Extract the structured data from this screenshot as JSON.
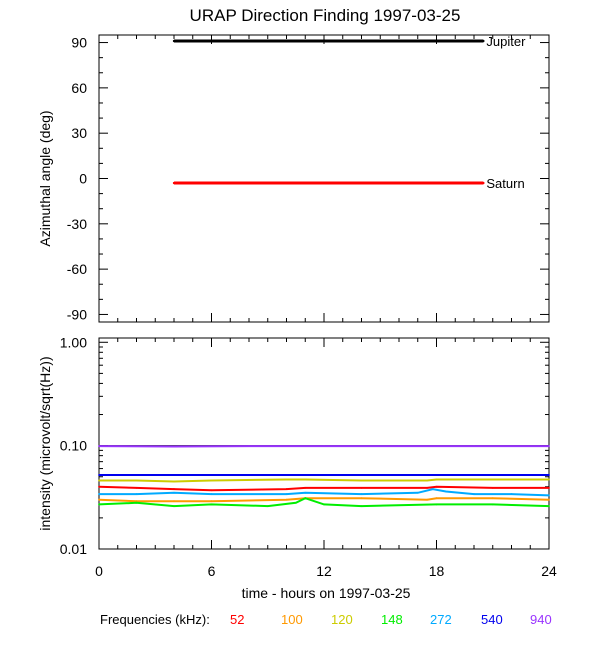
{
  "title": "URAP Direction Finding  1997-03-25",
  "xlabel": "time - hours on 1997-03-25",
  "frequencies_label": "Frequencies (kHz):",
  "chart_data": [
    {
      "type": "line",
      "ylabel": "Azimuthal angle (deg)",
      "xlim": [
        0,
        24
      ],
      "ylim": [
        -95,
        95
      ],
      "xticks": [
        "0",
        "6",
        "12",
        "18",
        "24"
      ],
      "xtick_values": [
        0,
        6,
        12,
        18,
        24
      ],
      "yticks": [
        "90",
        "60",
        "30",
        "0",
        "-30",
        "-60",
        "-90"
      ],
      "ytick_values": [
        90,
        60,
        30,
        0,
        -30,
        -60,
        -90
      ],
      "series": [
        {
          "name": "Jupiter",
          "color": "#000000",
          "x": [
            4,
            20.5
          ],
          "y": [
            91,
            91
          ]
        },
        {
          "name": "Saturn",
          "color": "#ff0000",
          "x": [
            4,
            20.5
          ],
          "y": [
            -3,
            -3
          ]
        }
      ]
    },
    {
      "type": "line",
      "ylabel": "intensity (microvolt/sqrt(Hz))",
      "scale": "log",
      "xlim": [
        0,
        24
      ],
      "ylim": [
        0.01,
        1.1
      ],
      "xticks": [
        "0",
        "6",
        "12",
        "18",
        "24"
      ],
      "xtick_values": [
        0,
        6,
        12,
        18,
        24
      ],
      "yticks": [
        "1.00",
        "0.10",
        "0.01"
      ],
      "ytick_values": [
        1.0,
        0.1,
        0.01
      ],
      "reference_lines": [
        0.1,
        0.01
      ],
      "series": [
        {
          "name": "52",
          "color": "#ff0000",
          "x": [
            0,
            2,
            4,
            6,
            10,
            11,
            14,
            17.5,
            18,
            21,
            24
          ],
          "y": [
            0.04,
            0.039,
            0.038,
            0.037,
            0.038,
            0.039,
            0.039,
            0.039,
            0.04,
            0.039,
            0.039
          ]
        },
        {
          "name": "100",
          "color": "#ff9900",
          "x": [
            0,
            2,
            4,
            6,
            10,
            11,
            14,
            17.5,
            18,
            21,
            24
          ],
          "y": [
            0.03,
            0.029,
            0.029,
            0.029,
            0.03,
            0.031,
            0.031,
            0.03,
            0.031,
            0.031,
            0.03
          ]
        },
        {
          "name": "120",
          "color": "#cccc00",
          "x": [
            0,
            2,
            4,
            6,
            10,
            11,
            14,
            17.5,
            18,
            21,
            24
          ],
          "y": [
            0.046,
            0.046,
            0.045,
            0.046,
            0.047,
            0.047,
            0.046,
            0.046,
            0.047,
            0.047,
            0.047
          ]
        },
        {
          "name": "148",
          "color": "#00ee00",
          "x": [
            0,
            2,
            4,
            6,
            9,
            10.5,
            11,
            12,
            14,
            18,
            21,
            24
          ],
          "y": [
            0.027,
            0.028,
            0.026,
            0.027,
            0.026,
            0.028,
            0.031,
            0.027,
            0.026,
            0.027,
            0.027,
            0.026
          ]
        },
        {
          "name": "272",
          "color": "#00aaff",
          "x": [
            0,
            2,
            4,
            6,
            10,
            11,
            14,
            17,
            17.8,
            18.5,
            20,
            22,
            24
          ],
          "y": [
            0.034,
            0.034,
            0.035,
            0.034,
            0.034,
            0.035,
            0.034,
            0.035,
            0.038,
            0.036,
            0.034,
            0.034,
            0.033
          ]
        },
        {
          "name": "540",
          "color": "#0000ee",
          "x": [
            0,
            4,
            8,
            12,
            16,
            20,
            24
          ],
          "y": [
            0.052,
            0.052,
            0.052,
            0.052,
            0.052,
            0.052,
            0.052
          ]
        },
        {
          "name": "940",
          "color": "#9933ff",
          "x": [
            0,
            4,
            8,
            12,
            16,
            20,
            24
          ],
          "y": [
            0.099,
            0.098,
            0.099,
            0.099,
            0.099,
            0.099,
            0.099
          ]
        }
      ]
    }
  ]
}
